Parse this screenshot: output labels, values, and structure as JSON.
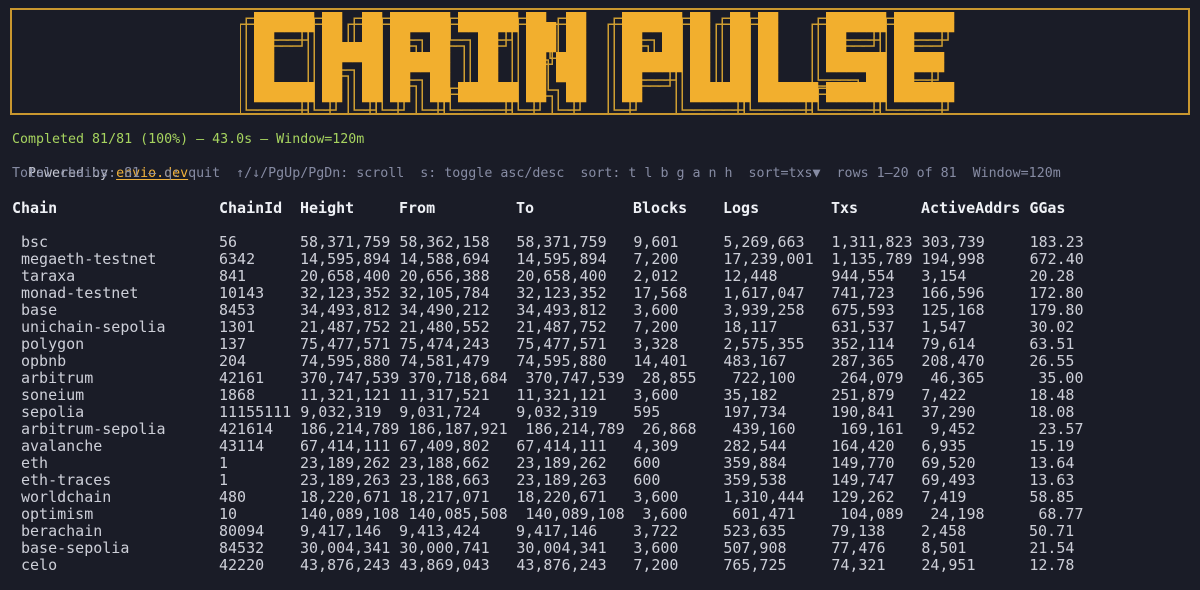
{
  "banner": {
    "title": "CHAIN PULSE"
  },
  "status": {
    "completed": "Completed 81/81 (100%) — 43.0s — Window=120m",
    "powered_prefix": "Powered by",
    "powered_link": "envio.dev",
    "help": "Total chains: 81 — q: quit  ↑/↓/PgUp/PgDn: scroll  s: toggle asc/desc  sort: t l b g a n h  sort=txs▼  rows 1–20 of 81  Window=120m"
  },
  "table": {
    "columns": [
      "Chain",
      "ChainId",
      "Height",
      "From",
      "To",
      "Blocks",
      "Logs",
      "Txs",
      "ActiveAddrs",
      "GGas"
    ],
    "rows": [
      [
        "bsc",
        "56",
        "58,371,759",
        "58,362,158",
        "58,371,759",
        "9,601",
        "5,269,663",
        "1,311,823",
        "303,739",
        "183.23"
      ],
      [
        "megaeth-testnet",
        "6342",
        "14,595,894",
        "14,588,694",
        "14,595,894",
        "7,200",
        "17,239,001",
        "1,135,789",
        "194,998",
        "672.40"
      ],
      [
        "taraxa",
        "841",
        "20,658,400",
        "20,656,388",
        "20,658,400",
        "2,012",
        "12,448",
        "944,554",
        "3,154",
        "20.28"
      ],
      [
        "monad-testnet",
        "10143",
        "32,123,352",
        "32,105,784",
        "32,123,352",
        "17,568",
        "1,617,047",
        "741,723",
        "166,596",
        "172.80"
      ],
      [
        "base",
        "8453",
        "34,493,812",
        "34,490,212",
        "34,493,812",
        "3,600",
        "3,939,258",
        "675,593",
        "125,168",
        "179.80"
      ],
      [
        "unichain-sepolia",
        "1301",
        "21,487,752",
        "21,480,552",
        "21,487,752",
        "7,200",
        "18,117",
        "631,537",
        "1,547",
        "30.02"
      ],
      [
        "polygon",
        "137",
        "75,477,571",
        "75,474,243",
        "75,477,571",
        "3,328",
        "2,575,355",
        "352,114",
        "79,614",
        "63.51"
      ],
      [
        "opbnb",
        "204",
        "74,595,880",
        "74,581,479",
        "74,595,880",
        "14,401",
        "483,167",
        "287,365",
        "208,470",
        "26.55"
      ],
      [
        "arbitrum",
        "42161",
        "370,747,539",
        "370,718,684",
        "370,747,539",
        "28,855",
        "722,100",
        "264,079",
        "46,365",
        "35.00"
      ],
      [
        "soneium",
        "1868",
        "11,321,121",
        "11,317,521",
        "11,321,121",
        "3,600",
        "35,182",
        "251,879",
        "7,422",
        "18.48"
      ],
      [
        "sepolia",
        "11155111",
        "9,032,319",
        "9,031,724",
        "9,032,319",
        "595",
        "197,734",
        "190,841",
        "37,290",
        "18.08"
      ],
      [
        "arbitrum-sepolia",
        "421614",
        "186,214,789",
        "186,187,921",
        "186,214,789",
        "26,868",
        "439,160",
        "169,161",
        "9,452",
        "23.57"
      ],
      [
        "avalanche",
        "43114",
        "67,414,111",
        "67,409,802",
        "67,414,111",
        "4,309",
        "282,544",
        "164,420",
        "6,935",
        "15.19"
      ],
      [
        "eth",
        "1",
        "23,189,262",
        "23,188,662",
        "23,189,262",
        "600",
        "359,884",
        "149,770",
        "69,520",
        "13.64"
      ],
      [
        "eth-traces",
        "1",
        "23,189,263",
        "23,188,663",
        "23,189,263",
        "600",
        "359,538",
        "149,747",
        "69,493",
        "13.63"
      ],
      [
        "worldchain",
        "480",
        "18,220,671",
        "18,217,071",
        "18,220,671",
        "3,600",
        "1,310,444",
        "129,262",
        "7,419",
        "58.85"
      ],
      [
        "optimism",
        "10",
        "140,089,108",
        "140,085,508",
        "140,089,108",
        "3,600",
        "601,471",
        "104,089",
        "24,198",
        "68.77"
      ],
      [
        "berachain",
        "80094",
        "9,417,146",
        "9,413,424",
        "9,417,146",
        "3,722",
        "523,635",
        "79,138",
        "2,458",
        "50.71"
      ],
      [
        "base-sepolia",
        "84532",
        "30,004,341",
        "30,000,741",
        "30,004,341",
        "3,600",
        "507,908",
        "77,476",
        "8,501",
        "21.54"
      ],
      [
        "celo",
        "42220",
        "43,876,243",
        "43,869,043",
        "43,876,243",
        "7,200",
        "765,725",
        "74,321",
        "24,951",
        "12.78"
      ]
    ]
  },
  "colors": {
    "background": "#1a1c27",
    "gold": "#f2af2e",
    "gold_outline": "#cf9e33",
    "border": "#c9972f",
    "green": "#a6d35f",
    "link": "#f0b13c",
    "muted_text": "#c7c9d3",
    "help_text": "#868ba3",
    "header_text": "#eef0f5",
    "table_text": "#cdcfd8"
  }
}
